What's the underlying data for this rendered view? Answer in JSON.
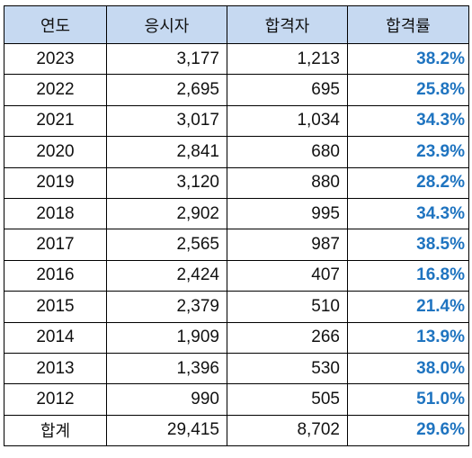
{
  "table": {
    "headers": [
      "연도",
      "응시자",
      "합격자",
      "합격률"
    ],
    "rows": [
      {
        "year": "2023",
        "applicants": "3,177",
        "passed": "1,213",
        "rate": "38.2%"
      },
      {
        "year": "2022",
        "applicants": "2,695",
        "passed": "695",
        "rate": "25.8%"
      },
      {
        "year": "2021",
        "applicants": "3,017",
        "passed": "1,034",
        "rate": "34.3%"
      },
      {
        "year": "2020",
        "applicants": "2,841",
        "passed": "680",
        "rate": "23.9%"
      },
      {
        "year": "2019",
        "applicants": "3,120",
        "passed": "880",
        "rate": "28.2%"
      },
      {
        "year": "2018",
        "applicants": "2,902",
        "passed": "995",
        "rate": "34.3%"
      },
      {
        "year": "2017",
        "applicants": "2,565",
        "passed": "987",
        "rate": "38.5%"
      },
      {
        "year": "2016",
        "applicants": "2,424",
        "passed": "407",
        "rate": "16.8%"
      },
      {
        "year": "2015",
        "applicants": "2,379",
        "passed": "510",
        "rate": "21.4%"
      },
      {
        "year": "2014",
        "applicants": "1,909",
        "passed": "266",
        "rate": "13.9%"
      },
      {
        "year": "2013",
        "applicants": "1,396",
        "passed": "530",
        "rate": "38.0%"
      },
      {
        "year": "2012",
        "applicants": "990",
        "passed": "505",
        "rate": "51.0%"
      }
    ],
    "total": {
      "label": "합계",
      "applicants": "29,415",
      "passed": "8,702",
      "rate": "29.6%"
    }
  },
  "colors": {
    "header_bg": "#c6d9f1",
    "rate_text": "#1f74c0",
    "border": "#000000"
  }
}
